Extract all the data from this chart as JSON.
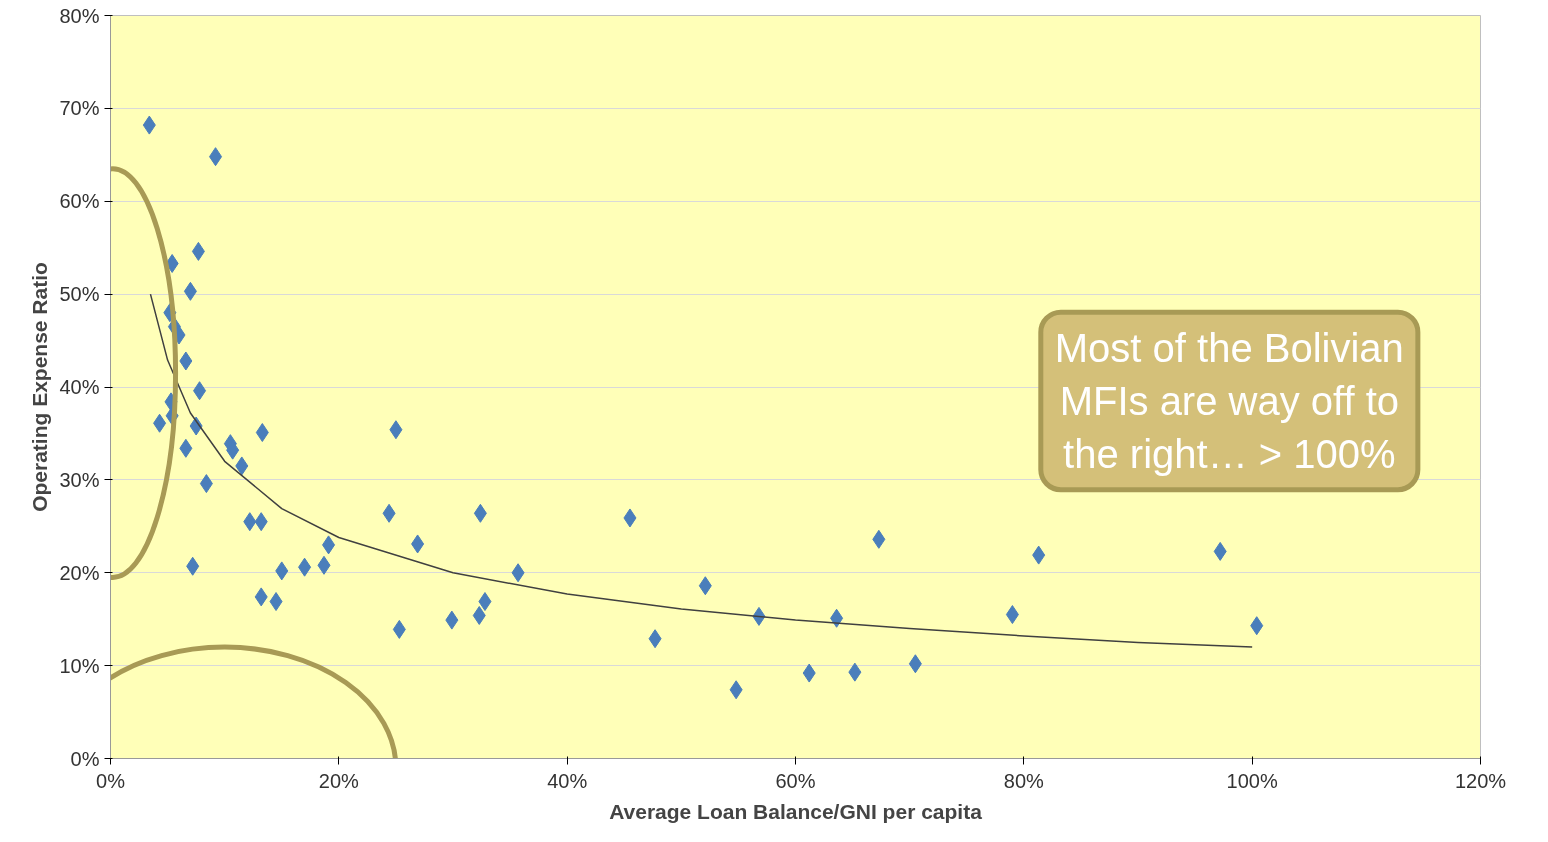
{
  "chart_data": {
    "type": "scatter",
    "xlabel": "Average Loan Balance/GNI per capita",
    "ylabel": "Operating Expense Ratio",
    "xlim": [
      0,
      120
    ],
    "ylim": [
      0,
      80
    ],
    "xticks": [
      {
        "value": 0,
        "label": "0%"
      },
      {
        "value": 20,
        "label": "20%"
      },
      {
        "value": 40,
        "label": "40%"
      },
      {
        "value": 60,
        "label": "60%"
      },
      {
        "value": 80,
        "label": "80%"
      },
      {
        "value": 100,
        "label": "100%"
      },
      {
        "value": 120,
        "label": "120%"
      }
    ],
    "yticks": [
      {
        "value": 0,
        "label": "0%"
      },
      {
        "value": 10,
        "label": "10%"
      },
      {
        "value": 20,
        "label": "20%"
      },
      {
        "value": 30,
        "label": "30%"
      },
      {
        "value": 40,
        "label": "40%"
      },
      {
        "value": 50,
        "label": "50%"
      },
      {
        "value": 60,
        "label": "60%"
      },
      {
        "value": 70,
        "label": "70%"
      },
      {
        "value": 80,
        "label": "80%"
      }
    ],
    "grid": "y",
    "series": [
      {
        "marker": "diamond",
        "color": "#4a7ebb",
        "x": [
          3.4,
          9.2,
          5.4,
          7.7,
          7.0,
          5.2,
          5.6,
          6.0,
          6.6,
          7.8,
          5.3,
          4.3,
          5.4,
          7.5,
          6.6,
          10.5,
          10.7,
          13.3,
          11.5,
          8.4,
          12.2,
          13.2,
          7.2,
          13.2,
          14.5,
          15.0,
          17.0,
          18.7,
          19.1,
          25.0,
          24.4,
          25.3,
          26.9,
          29.9,
          32.4,
          32.3,
          32.8,
          35.7,
          45.5,
          47.7,
          52.1,
          54.8,
          56.8,
          61.2,
          63.6,
          65.2,
          67.3,
          70.5,
          79.0,
          81.3,
          97.2,
          100.4
        ],
        "values": [
          68.2,
          64.8,
          53.3,
          54.6,
          50.3,
          48.0,
          46.5,
          45.6,
          42.8,
          39.6,
          38.4,
          36.1,
          36.9,
          35.8,
          33.4,
          33.9,
          33.2,
          35.1,
          31.5,
          29.6,
          25.5,
          25.5,
          20.7,
          17.4,
          16.9,
          20.2,
          20.6,
          20.8,
          23.0,
          35.4,
          26.4,
          13.9,
          23.1,
          14.9,
          26.4,
          15.4,
          16.9,
          20.0,
          25.9,
          12.9,
          18.6,
          7.4,
          15.3,
          9.2,
          15.1,
          9.3,
          23.6,
          10.2,
          15.5,
          21.9,
          22.3,
          14.3
        ]
      },
      {
        "type": "line",
        "marker": "none",
        "color": "#404040",
        "x": [
          3.5,
          5,
          7,
          10,
          15,
          20,
          30,
          40,
          50,
          60,
          70,
          80,
          90,
          100
        ],
        "values": [
          50.0,
          42.9,
          37.2,
          32.0,
          26.9,
          23.8,
          20.0,
          17.7,
          16.1,
          14.9,
          14.0,
          13.2,
          12.5,
          12.0
        ]
      }
    ],
    "annotations": [
      "Most of the Bolivian MFIs are way off to the right… > 100%"
    ]
  }
}
